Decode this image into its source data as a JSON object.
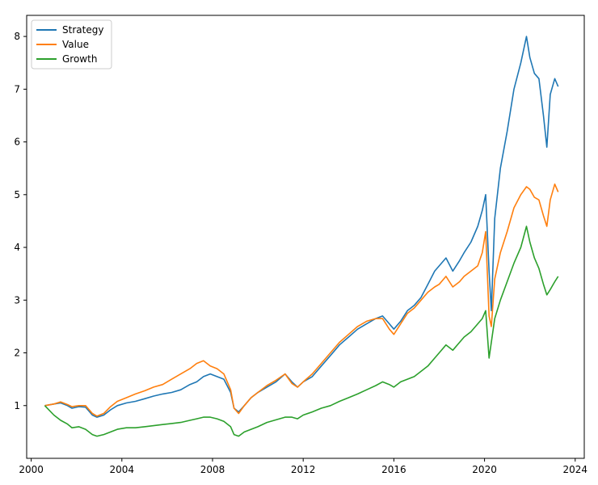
{
  "chart_data": {
    "type": "line",
    "title": "",
    "xlabel": "",
    "ylabel": "",
    "xlim": [
      1999.8,
      2024.4
    ],
    "ylim": [
      0.0,
      8.4
    ],
    "grid": false,
    "legend_position": "top-left",
    "xticks": [
      {
        "value": 2000,
        "label": "2000"
      },
      {
        "value": 2004,
        "label": "2004"
      },
      {
        "value": 2008,
        "label": "2008"
      },
      {
        "value": 2012,
        "label": "2012"
      },
      {
        "value": 2016,
        "label": "2016"
      },
      {
        "value": 2020,
        "label": "2020"
      },
      {
        "value": 2024,
        "label": "2024"
      }
    ],
    "yticks": [
      {
        "value": 1,
        "label": "1"
      },
      {
        "value": 2,
        "label": "2"
      },
      {
        "value": 3,
        "label": "3"
      },
      {
        "value": 4,
        "label": "4"
      },
      {
        "value": 5,
        "label": "5"
      },
      {
        "value": 6,
        "label": "6"
      },
      {
        "value": 7,
        "label": "7"
      },
      {
        "value": 8,
        "label": "8"
      }
    ],
    "series": [
      {
        "name": "Strategy",
        "color": "#1f77b4",
        "x": [
          2000.6,
          2001.0,
          2001.3,
          2001.6,
          2001.8,
          2002.1,
          2002.4,
          2002.7,
          2002.9,
          2003.2,
          2003.5,
          2003.8,
          2004.2,
          2004.6,
          2005.0,
          2005.4,
          2005.8,
          2006.2,
          2006.6,
          2007.0,
          2007.3,
          2007.6,
          2007.9,
          2008.2,
          2008.5,
          2008.8,
          2008.95,
          2009.15,
          2009.4,
          2009.7,
          2010.0,
          2010.4,
          2010.8,
          2011.2,
          2011.5,
          2011.75,
          2012.0,
          2012.4,
          2012.8,
          2013.2,
          2013.6,
          2014.0,
          2014.4,
          2014.8,
          2015.2,
          2015.5,
          2015.8,
          2016.0,
          2016.3,
          2016.6,
          2016.9,
          2017.2,
          2017.5,
          2017.8,
          2018.0,
          2018.3,
          2018.6,
          2018.9,
          2019.1,
          2019.4,
          2019.7,
          2019.9,
          2020.05,
          2020.2,
          2020.3,
          2020.45,
          2020.7,
          2021.0,
          2021.3,
          2021.6,
          2021.85,
          2022.0,
          2022.2,
          2022.4,
          2022.6,
          2022.75,
          2022.9,
          2023.1,
          2023.25
        ],
        "y": [
          1.0,
          1.03,
          1.05,
          1.0,
          0.95,
          0.98,
          0.97,
          0.82,
          0.78,
          0.82,
          0.92,
          1.0,
          1.05,
          1.08,
          1.13,
          1.18,
          1.22,
          1.25,
          1.3,
          1.4,
          1.45,
          1.55,
          1.6,
          1.55,
          1.5,
          1.25,
          0.95,
          0.88,
          1.0,
          1.15,
          1.25,
          1.35,
          1.45,
          1.6,
          1.45,
          1.35,
          1.45,
          1.55,
          1.75,
          1.95,
          2.15,
          2.3,
          2.45,
          2.55,
          2.65,
          2.7,
          2.55,
          2.45,
          2.6,
          2.8,
          2.9,
          3.05,
          3.3,
          3.55,
          3.65,
          3.8,
          3.55,
          3.75,
          3.9,
          4.1,
          4.4,
          4.7,
          5.0,
          3.55,
          2.8,
          4.55,
          5.5,
          6.2,
          7.0,
          7.5,
          8.0,
          7.6,
          7.3,
          7.2,
          6.5,
          5.9,
          6.9,
          7.2,
          7.05
        ]
      },
      {
        "name": "Value",
        "color": "#ff7f0e",
        "x": [
          2000.6,
          2001.0,
          2001.3,
          2001.6,
          2001.8,
          2002.1,
          2002.4,
          2002.7,
          2002.9,
          2003.2,
          2003.5,
          2003.8,
          2004.2,
          2004.6,
          2005.0,
          2005.4,
          2005.8,
          2006.2,
          2006.6,
          2007.0,
          2007.3,
          2007.6,
          2007.9,
          2008.2,
          2008.5,
          2008.8,
          2008.95,
          2009.15,
          2009.4,
          2009.7,
          2010.0,
          2010.4,
          2010.8,
          2011.2,
          2011.5,
          2011.75,
          2012.0,
          2012.4,
          2012.8,
          2013.2,
          2013.6,
          2014.0,
          2014.4,
          2014.8,
          2015.2,
          2015.5,
          2015.8,
          2016.0,
          2016.3,
          2016.6,
          2016.9,
          2017.2,
          2017.5,
          2017.8,
          2018.0,
          2018.3,
          2018.6,
          2018.9,
          2019.1,
          2019.4,
          2019.7,
          2019.9,
          2020.05,
          2020.2,
          2020.3,
          2020.45,
          2020.7,
          2021.0,
          2021.3,
          2021.6,
          2021.85,
          2022.0,
          2022.2,
          2022.4,
          2022.6,
          2022.75,
          2022.9,
          2023.1,
          2023.25
        ],
        "y": [
          1.0,
          1.03,
          1.07,
          1.02,
          0.98,
          1.0,
          1.0,
          0.85,
          0.8,
          0.85,
          0.98,
          1.08,
          1.15,
          1.22,
          1.28,
          1.35,
          1.4,
          1.5,
          1.6,
          1.7,
          1.8,
          1.85,
          1.75,
          1.7,
          1.6,
          1.3,
          0.95,
          0.85,
          1.0,
          1.15,
          1.25,
          1.38,
          1.48,
          1.6,
          1.42,
          1.35,
          1.45,
          1.6,
          1.8,
          2.0,
          2.2,
          2.35,
          2.5,
          2.6,
          2.65,
          2.65,
          2.45,
          2.35,
          2.55,
          2.75,
          2.85,
          3.0,
          3.15,
          3.25,
          3.3,
          3.45,
          3.25,
          3.35,
          3.45,
          3.55,
          3.65,
          3.9,
          4.3,
          2.7,
          2.5,
          3.4,
          3.9,
          4.3,
          4.75,
          5.0,
          5.15,
          5.1,
          4.95,
          4.9,
          4.6,
          4.4,
          4.9,
          5.2,
          5.05
        ]
      },
      {
        "name": "Growth",
        "color": "#2ca02c",
        "x": [
          2000.6,
          2001.0,
          2001.3,
          2001.6,
          2001.8,
          2002.1,
          2002.4,
          2002.7,
          2002.9,
          2003.2,
          2003.5,
          2003.8,
          2004.2,
          2004.6,
          2005.0,
          2005.4,
          2005.8,
          2006.2,
          2006.6,
          2007.0,
          2007.3,
          2007.6,
          2007.9,
          2008.2,
          2008.5,
          2008.8,
          2008.95,
          2009.15,
          2009.4,
          2009.7,
          2010.0,
          2010.4,
          2010.8,
          2011.2,
          2011.5,
          2011.75,
          2012.0,
          2012.4,
          2012.8,
          2013.2,
          2013.6,
          2014.0,
          2014.4,
          2014.8,
          2015.2,
          2015.5,
          2015.8,
          2016.0,
          2016.3,
          2016.6,
          2016.9,
          2017.2,
          2017.5,
          2017.8,
          2018.0,
          2018.3,
          2018.6,
          2018.9,
          2019.1,
          2019.4,
          2019.7,
          2019.9,
          2020.05,
          2020.2,
          2020.3,
          2020.45,
          2020.7,
          2021.0,
          2021.3,
          2021.6,
          2021.85,
          2022.0,
          2022.2,
          2022.4,
          2022.6,
          2022.75,
          2022.9,
          2023.1,
          2023.25
        ],
        "y": [
          1.0,
          0.82,
          0.72,
          0.65,
          0.58,
          0.6,
          0.55,
          0.45,
          0.42,
          0.45,
          0.5,
          0.55,
          0.58,
          0.58,
          0.6,
          0.62,
          0.64,
          0.66,
          0.68,
          0.72,
          0.75,
          0.78,
          0.78,
          0.75,
          0.7,
          0.6,
          0.45,
          0.42,
          0.5,
          0.55,
          0.6,
          0.68,
          0.73,
          0.78,
          0.78,
          0.75,
          0.82,
          0.88,
          0.95,
          1.0,
          1.08,
          1.15,
          1.22,
          1.3,
          1.38,
          1.45,
          1.4,
          1.35,
          1.45,
          1.5,
          1.55,
          1.65,
          1.75,
          1.9,
          2.0,
          2.15,
          2.05,
          2.2,
          2.3,
          2.4,
          2.55,
          2.65,
          2.8,
          1.9,
          2.2,
          2.65,
          3.0,
          3.35,
          3.7,
          4.0,
          4.4,
          4.1,
          3.8,
          3.6,
          3.3,
          3.1,
          3.2,
          3.35,
          3.45
        ]
      }
    ]
  }
}
